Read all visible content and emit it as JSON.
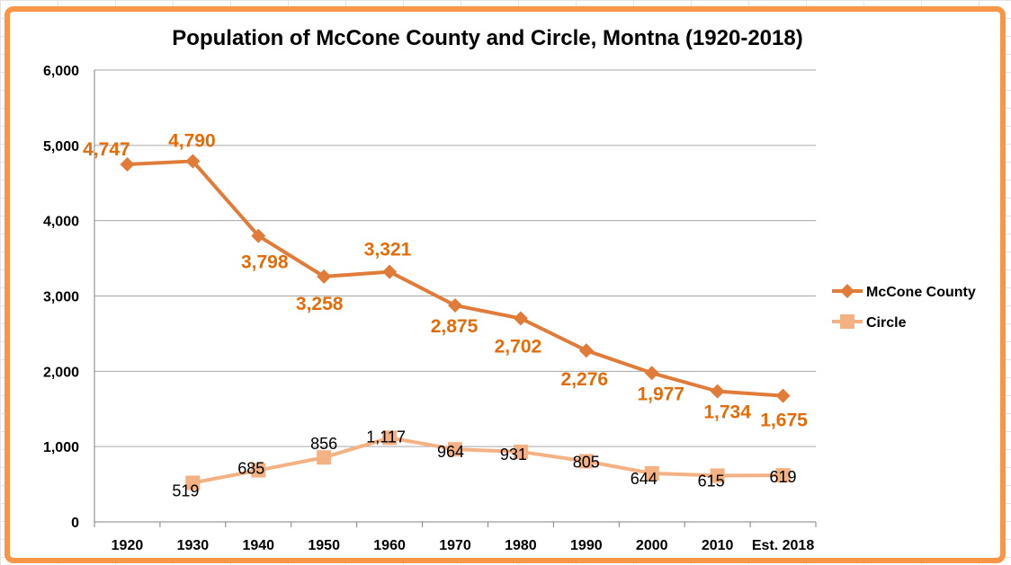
{
  "chart_data": {
    "type": "line",
    "title": "Population of McCone County and Circle, Montna (1920-2018)",
    "xlabel": "",
    "ylabel": "",
    "categories": [
      "1920",
      "1930",
      "1940",
      "1950",
      "1960",
      "1970",
      "1980",
      "1990",
      "2000",
      "2010",
      "Est. 2018"
    ],
    "ylim": [
      0,
      6000
    ],
    "yticks": [
      0,
      1000,
      2000,
      3000,
      4000,
      5000,
      6000
    ],
    "ytick_labels": [
      "0",
      "1,000",
      "2,000",
      "3,000",
      "4,000",
      "5,000",
      "6,000"
    ],
    "grid": true,
    "legend_position": "right",
    "series": [
      {
        "name": "McCone County",
        "color": "#e07b39",
        "label_color": "#e36c09",
        "marker": "diamond",
        "values": [
          4747,
          4790,
          3798,
          3258,
          3321,
          2875,
          2702,
          2276,
          1977,
          1734,
          1675
        ],
        "labels": [
          "4,747",
          "4,790",
          "3,798",
          "3,258",
          "3,321",
          "2,875",
          "2,702",
          "2,276",
          "1,977",
          "1,734",
          "1,675"
        ]
      },
      {
        "name": "Circle",
        "color": "#f4b183",
        "label_color": "#000000",
        "marker": "square",
        "values": [
          null,
          519,
          685,
          856,
          1117,
          964,
          931,
          805,
          644,
          615,
          619
        ],
        "labels": [
          null,
          "519",
          "685",
          "856",
          "1,117",
          "964",
          "931",
          "805",
          "644",
          "615",
          "619"
        ]
      }
    ]
  }
}
